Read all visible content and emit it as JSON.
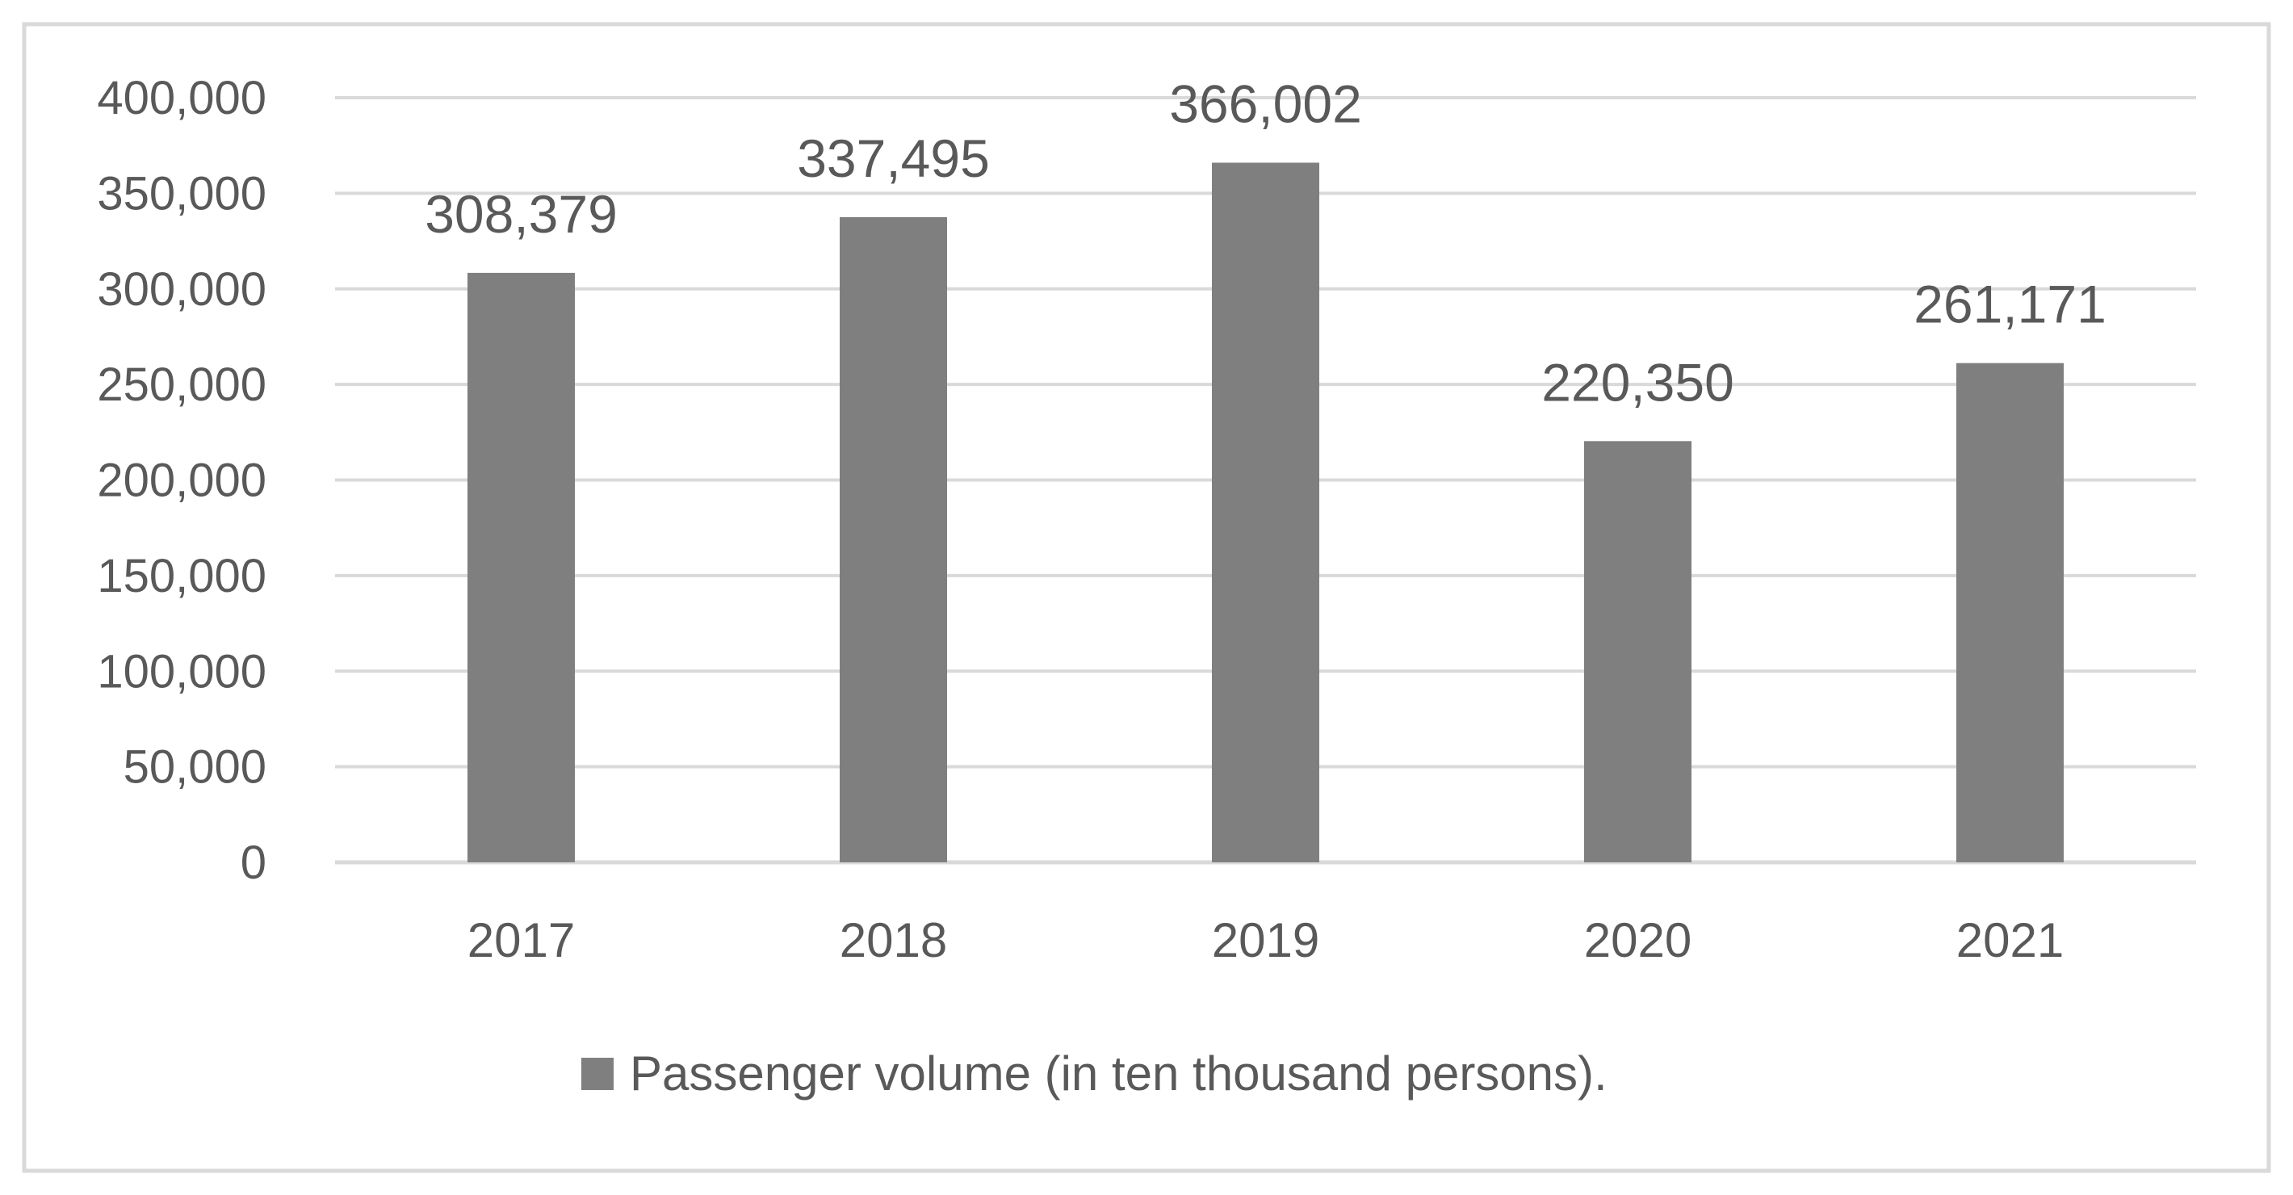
{
  "chart_data": {
    "type": "bar",
    "title": "",
    "xlabel": "",
    "ylabel": "",
    "categories": [
      "2017",
      "2018",
      "2019",
      "2020",
      "2021"
    ],
    "series": [
      {
        "name": "Passenger volume (in ten thousand persons).",
        "values": [
          308379,
          337495,
          366002,
          220350,
          261171
        ],
        "value_labels": [
          "308,379",
          "337,495",
          "366,002",
          "220,350",
          "261,171"
        ]
      }
    ],
    "ylim": [
      0,
      400000
    ],
    "yticks": [
      0,
      50000,
      100000,
      150000,
      200000,
      250000,
      300000,
      350000,
      400000
    ],
    "ytick_labels": [
      "0",
      "50,000",
      "100,000",
      "150,000",
      "200,000",
      "250,000",
      "300,000",
      "350,000",
      "400,000"
    ],
    "grid": true,
    "legend_position": "bottom-center"
  },
  "colors": {
    "bar": "#7f7f7f",
    "gridline": "#d9d9d9",
    "text": "#595959",
    "border": "#d9d9d9",
    "background": "#ffffff"
  }
}
